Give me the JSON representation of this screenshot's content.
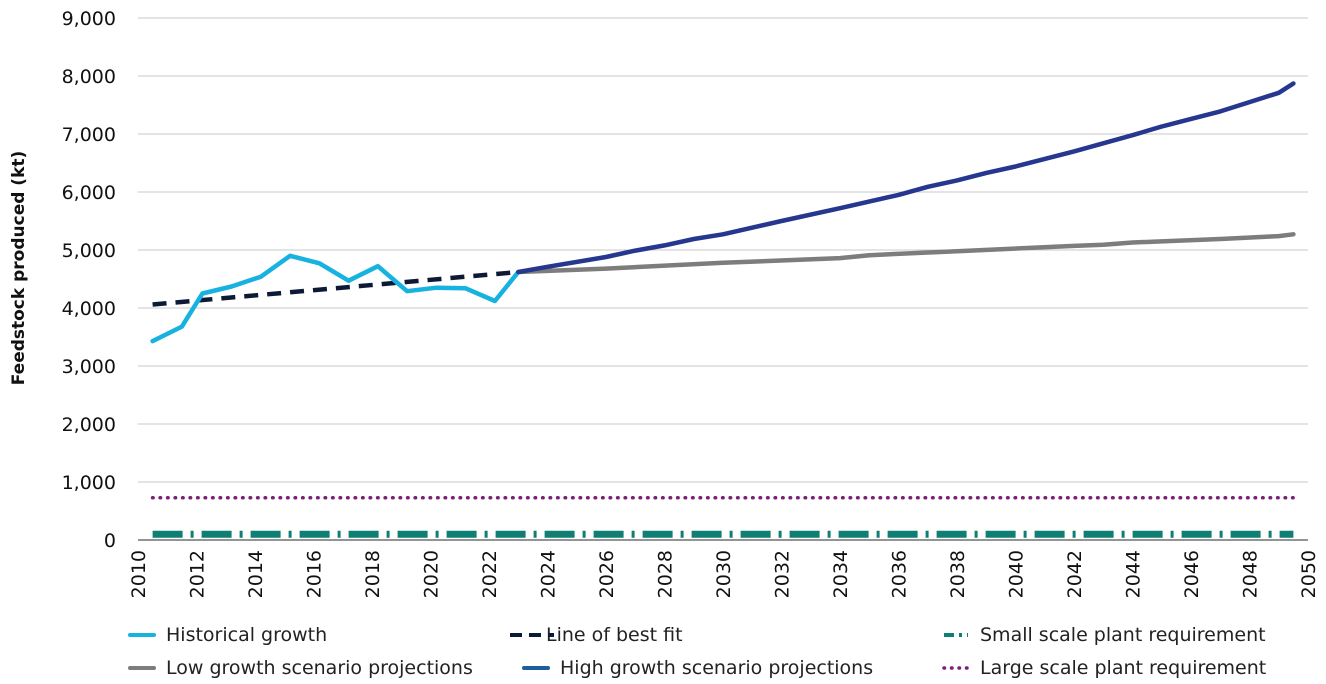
{
  "chart_data": {
    "type": "line",
    "title": "",
    "xlabel": "",
    "ylabel": "Feedstock produced (kt)",
    "xlim": [
      2010,
      2050
    ],
    "ylim": [
      0,
      9000
    ],
    "x_ticks": [
      "2010",
      "2012",
      "2014",
      "2016",
      "2018",
      "2020",
      "2022",
      "2024",
      "2026",
      "2028",
      "2030",
      "2032",
      "2034",
      "2036",
      "2038",
      "2040",
      "2042",
      "2044",
      "2046",
      "2048",
      "2050"
    ],
    "y_ticks": [
      "0",
      "1,000",
      "2,000",
      "3,000",
      "4,000",
      "5,000",
      "6,000",
      "7,000",
      "8,000",
      "9,000"
    ],
    "grid": "horizontal",
    "legend_position": "bottom",
    "series": [
      {
        "name": "Historical growth",
        "color": "#18b2e0",
        "style": "solid",
        "x": [
          2010.5,
          2011.5,
          2012.2,
          2013.2,
          2014.2,
          2015.2,
          2016.2,
          2017.2,
          2018.2,
          2019.2,
          2020.2,
          2021.2,
          2022.2,
          2023.0
        ],
        "y": [
          3430,
          3680,
          4250,
          4370,
          4540,
          4900,
          4770,
          4470,
          4720,
          4290,
          4350,
          4340,
          4120,
          4620
        ]
      },
      {
        "name": "Line of best fit",
        "color": "#0d1a36",
        "style": "dashed",
        "x": [
          2010.5,
          2023.0
        ],
        "y": [
          4060,
          4620
        ]
      },
      {
        "name": "Small scale plant requirement",
        "color": "#0e7f72",
        "style": "dashdot",
        "x": [
          2010.5,
          2049.5
        ],
        "y": [
          100,
          100
        ]
      },
      {
        "name": "Low growth scenario projections",
        "color": "#7d7d7d",
        "style": "solid",
        "x": [
          2023.0,
          2026,
          2030,
          2034,
          2035,
          2038,
          2042,
          2043,
          2044,
          2047,
          2049,
          2049.5
        ],
        "y": [
          4620,
          4680,
          4780,
          4860,
          4910,
          4980,
          5070,
          5090,
          5130,
          5190,
          5240,
          5270
        ]
      },
      {
        "name": "High growth scenario projections",
        "color": "#25378f",
        "style": "solid",
        "x": [
          2023.0,
          2024,
          2026,
          2027,
          2028,
          2029,
          2030,
          2032,
          2034,
          2036,
          2037,
          2038,
          2039,
          2040,
          2042,
          2044,
          2045,
          2046,
          2047,
          2048,
          2049,
          2049.5
        ],
        "y": [
          4620,
          4710,
          4880,
          4990,
          5080,
          5190,
          5270,
          5500,
          5720,
          5950,
          6090,
          6200,
          6330,
          6440,
          6700,
          6980,
          7130,
          7260,
          7390,
          7550,
          7710,
          7870
        ]
      },
      {
        "name": "Large scale plant requirement",
        "color": "#7a1f78",
        "style": "dotted",
        "x": [
          2010.5,
          2049.5
        ],
        "y": [
          730,
          730
        ]
      }
    ]
  },
  "legend": {
    "items": [
      {
        "label": "Historical growth",
        "color": "#18b2e0",
        "style": "solid"
      },
      {
        "label": "Line of best fit",
        "color": "#0d1a36",
        "style": "dashed"
      },
      {
        "label": "Small scale plant requirement",
        "color": "#0e7f72",
        "style": "dashdot"
      },
      {
        "label": "Low growth scenario projections",
        "color": "#7d7d7d",
        "style": "solid"
      },
      {
        "label": "High growth scenario projections",
        "color": "#1b5f9e",
        "style": "solid"
      },
      {
        "label": "Large scale plant requirement",
        "color": "#7a1f78",
        "style": "dotted"
      }
    ]
  }
}
